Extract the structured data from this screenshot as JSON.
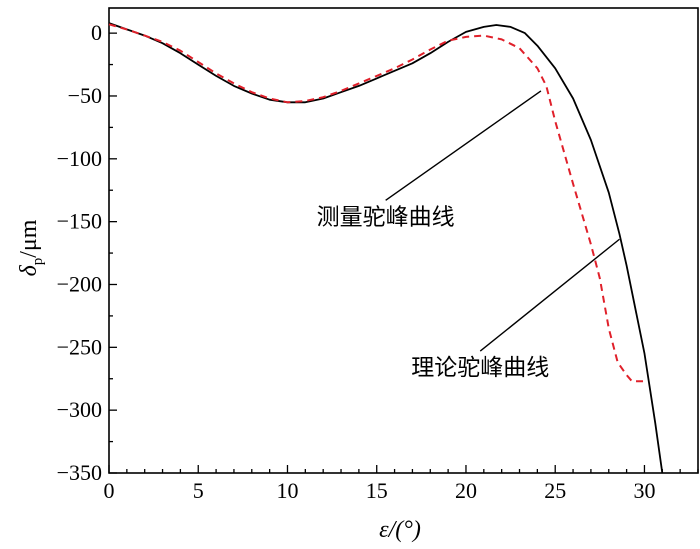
{
  "chart_data": {
    "type": "line",
    "xlabel": "ε/(°)",
    "ylabel": {
      "symbol": "δ",
      "subscript": "p",
      "unit": "/μm"
    },
    "xlim": [
      0,
      33
    ],
    "ylim": [
      -350,
      20
    ],
    "xticks": [
      0,
      5,
      10,
      15,
      20,
      25,
      30
    ],
    "yticks": [
      0,
      -50,
      -100,
      -150,
      -200,
      -250,
      -300,
      -350
    ],
    "grid": false,
    "series": [
      {
        "color": "#000000",
        "style": "solid",
        "points": [
          [
            0,
            8
          ],
          [
            1,
            3
          ],
          [
            2,
            -2
          ],
          [
            3,
            -8
          ],
          [
            4,
            -16
          ],
          [
            5,
            -25
          ],
          [
            6,
            -34
          ],
          [
            7,
            -42
          ],
          [
            8,
            -48
          ],
          [
            9,
            -53
          ],
          [
            10,
            -55
          ],
          [
            11,
            -55
          ],
          [
            12,
            -52
          ],
          [
            13,
            -47
          ],
          [
            14,
            -42
          ],
          [
            15,
            -36
          ],
          [
            16,
            -30
          ],
          [
            17,
            -24
          ],
          [
            18,
            -16
          ],
          [
            19,
            -7
          ],
          [
            20,
            1
          ],
          [
            21,
            5
          ],
          [
            21.7,
            6.5
          ],
          [
            22.5,
            5
          ],
          [
            23.3,
            0
          ],
          [
            24,
            -10
          ],
          [
            25,
            -28
          ],
          [
            26,
            -52
          ],
          [
            27,
            -85
          ],
          [
            28,
            -127
          ],
          [
            28.6,
            -160
          ],
          [
            29,
            -185
          ],
          [
            30,
            -255
          ],
          [
            30.6,
            -310
          ],
          [
            31,
            -350
          ]
        ]
      },
      {
        "color": "#e0202a",
        "style": "dashed",
        "points": [
          [
            0,
            7
          ],
          [
            1,
            3
          ],
          [
            2,
            -2
          ],
          [
            3,
            -7
          ],
          [
            4,
            -14
          ],
          [
            5,
            -23
          ],
          [
            6,
            -32
          ],
          [
            7,
            -40
          ],
          [
            8,
            -47
          ],
          [
            9,
            -52
          ],
          [
            10,
            -55
          ],
          [
            11,
            -54
          ],
          [
            12,
            -51
          ],
          [
            13,
            -46
          ],
          [
            14,
            -40
          ],
          [
            15,
            -34
          ],
          [
            16,
            -28
          ],
          [
            17,
            -21
          ],
          [
            18,
            -13
          ],
          [
            19,
            -6
          ],
          [
            20,
            -3
          ],
          [
            21,
            -2
          ],
          [
            22,
            -5
          ],
          [
            23,
            -12
          ],
          [
            24,
            -28
          ],
          [
            24.5,
            -42
          ],
          [
            25,
            -70
          ],
          [
            26,
            -120
          ],
          [
            27,
            -168
          ],
          [
            27.5,
            -195
          ],
          [
            28,
            -235
          ],
          [
            28.5,
            -262
          ],
          [
            29,
            -272
          ],
          [
            29.3,
            -277
          ],
          [
            30,
            -277
          ]
        ]
      }
    ],
    "annotations": [
      {
        "text": "测量驼峰曲线",
        "pointer": [
          24.2,
          -46
        ],
        "anchor": [
          15.5,
          -133
        ]
      },
      {
        "text": "理论驼峰曲线",
        "pointer": [
          28.6,
          -164
        ],
        "anchor": [
          20.8,
          -253
        ]
      }
    ]
  }
}
